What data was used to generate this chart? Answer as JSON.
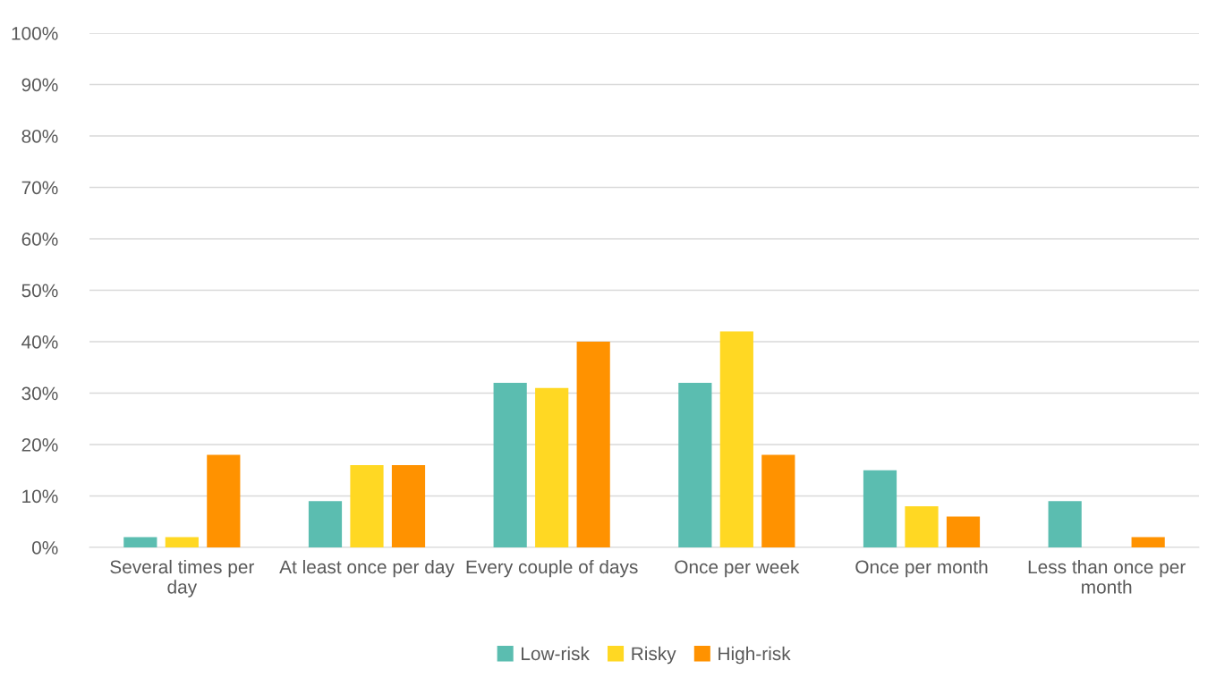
{
  "chart_data": {
    "type": "bar",
    "categories": [
      "Several times per day",
      "At least once per day",
      "Every couple of days",
      "Once per week",
      "Once per month",
      "Less than once per month"
    ],
    "series": [
      {
        "name": "Low-risk",
        "color": "#5bbdb0",
        "values": [
          2,
          9,
          32,
          32,
          15,
          9
        ]
      },
      {
        "name": "Risky",
        "color": "#ffd823",
        "values": [
          2,
          16,
          31,
          42,
          8,
          0
        ]
      },
      {
        "name": "High-risk",
        "color": "#ff9200",
        "values": [
          18,
          16,
          40,
          18,
          6,
          2
        ]
      }
    ],
    "ylim": [
      0,
      100
    ],
    "yticks": [
      {
        "value": 0,
        "label": "0%"
      },
      {
        "value": 10,
        "label": "10%"
      },
      {
        "value": 20,
        "label": "20%"
      },
      {
        "value": 30,
        "label": "30%"
      },
      {
        "value": 40,
        "label": "40%"
      },
      {
        "value": 50,
        "label": "50%"
      },
      {
        "value": 60,
        "label": "60%"
      },
      {
        "value": 70,
        "label": "70%"
      },
      {
        "value": 80,
        "label": "80%"
      },
      {
        "value": 90,
        "label": "90%"
      },
      {
        "value": 100,
        "label": "100%"
      }
    ],
    "grid": "y",
    "legend": "bottom"
  }
}
